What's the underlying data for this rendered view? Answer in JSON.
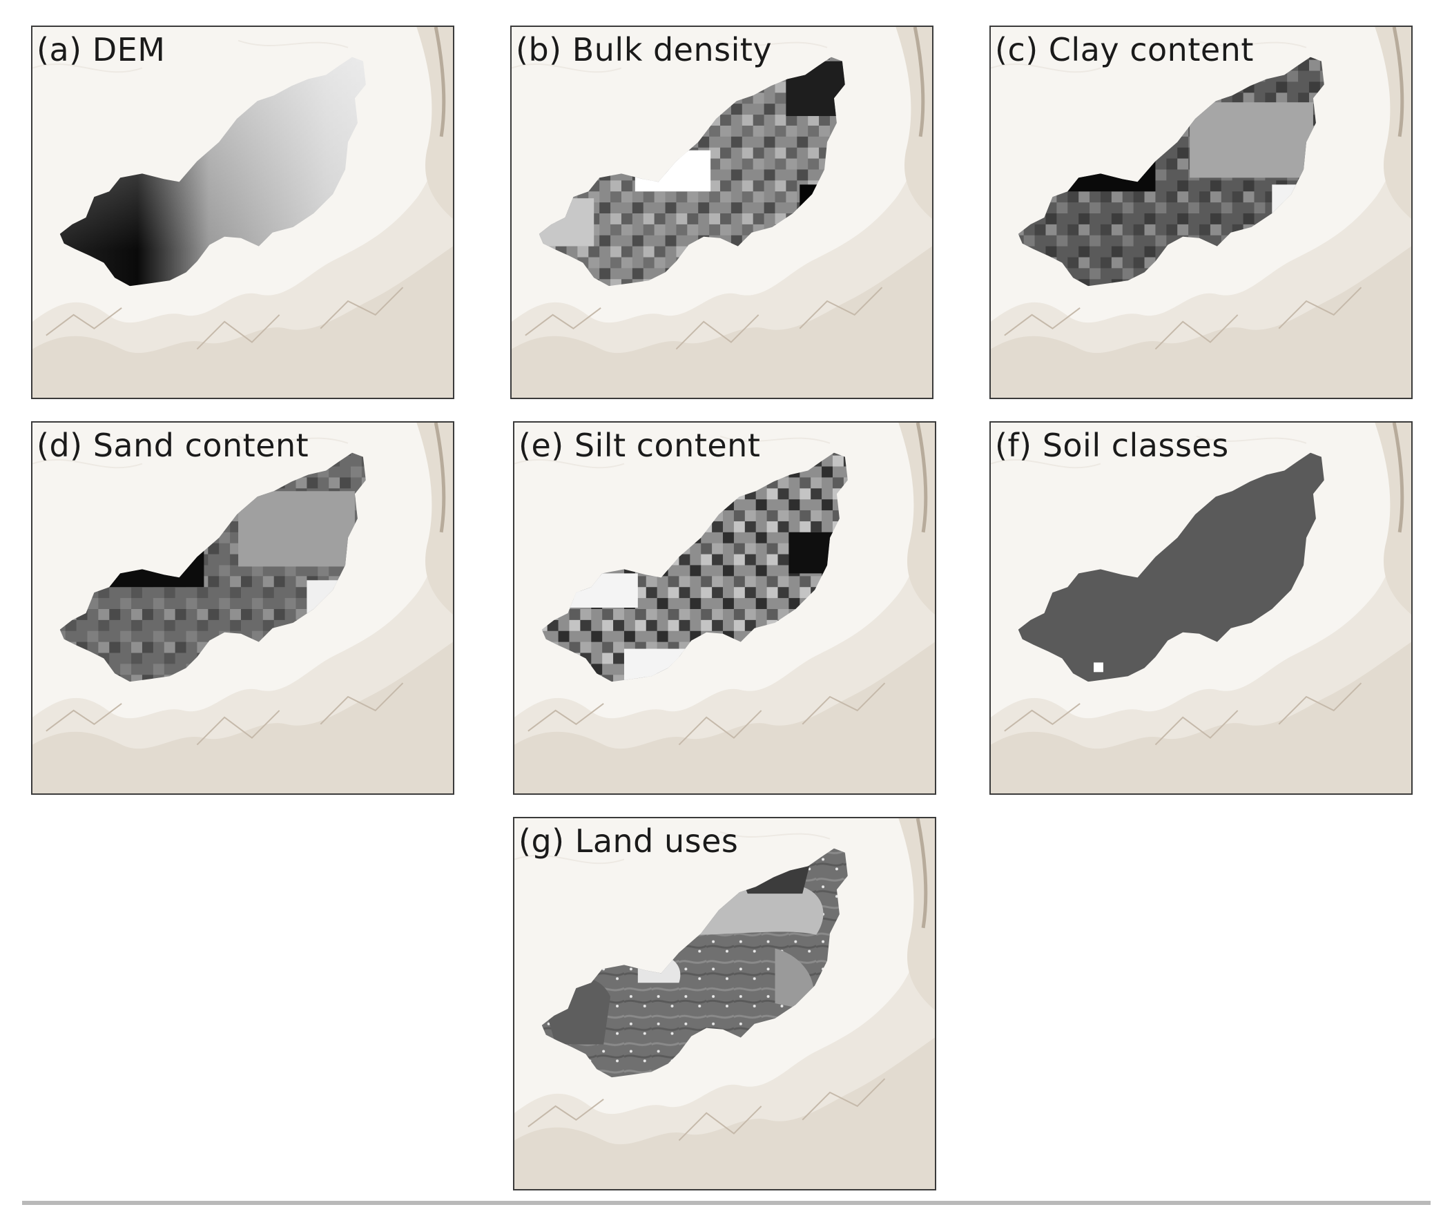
{
  "figure": {
    "panels": [
      {
        "id": "a",
        "label": "(a) DEM",
        "fill": "gradient-dem"
      },
      {
        "id": "b",
        "label": "(b) Bulk density",
        "fill": "pattern-bulk"
      },
      {
        "id": "c",
        "label": "(c) Clay content",
        "fill": "pattern-clay"
      },
      {
        "id": "d",
        "label": "(d) Sand content",
        "fill": "pattern-sand"
      },
      {
        "id": "e",
        "label": "(e) Silt content",
        "fill": "pattern-silt"
      },
      {
        "id": "f",
        "label": "(f) Soil classes",
        "fill": "solid"
      },
      {
        "id": "g",
        "label": "(g) Land uses",
        "fill": "pattern-landuse"
      }
    ],
    "colors": {
      "hillshade_bg": "#f7f5f1",
      "ridge": "#b7ab9b",
      "soil_class": "#5a5a5a",
      "border": "#3a3a3a"
    }
  }
}
